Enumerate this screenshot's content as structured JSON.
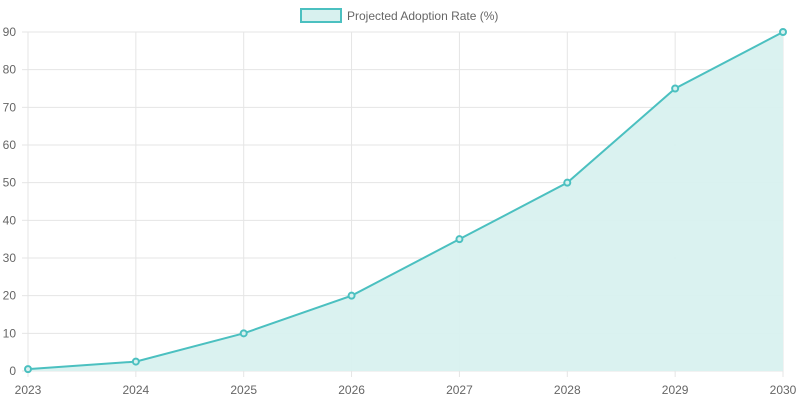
{
  "chart_data": {
    "type": "area",
    "categories": [
      "2023",
      "2024",
      "2025",
      "2026",
      "2027",
      "2028",
      "2029",
      "2030"
    ],
    "series": [
      {
        "name": "Projected Adoption Rate (%)",
        "values": [
          0.5,
          2.5,
          10,
          20,
          35,
          50,
          75,
          90
        ]
      }
    ],
    "ylim": [
      0,
      90
    ],
    "yticks": [
      0,
      10,
      20,
      30,
      40,
      50,
      60,
      70,
      80,
      90
    ],
    "grid": true,
    "legend": "top-center",
    "colors": {
      "line": "#4bc0c0",
      "fill": "#d8f1ef",
      "grid": "#e5e5e5",
      "text": "#666666"
    }
  }
}
